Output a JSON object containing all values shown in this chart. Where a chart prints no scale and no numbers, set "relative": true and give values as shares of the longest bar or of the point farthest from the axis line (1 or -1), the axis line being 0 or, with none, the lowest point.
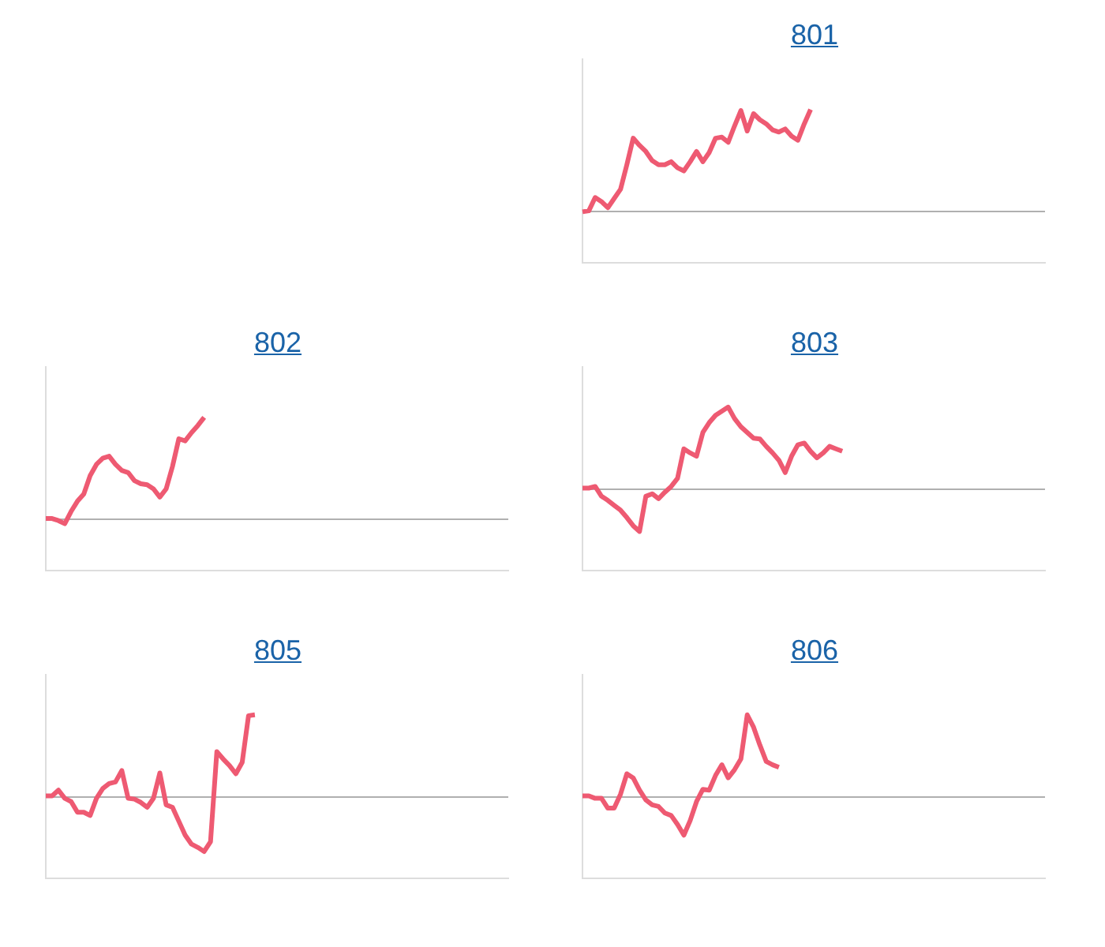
{
  "chart_data": [
    {
      "type": "line",
      "title": "801",
      "color": "#ee5a72",
      "relative": true,
      "categories": [
        null,
        null,
        null,
        null,
        null,
        null,
        null,
        null,
        null,
        null,
        null,
        null,
        null,
        null,
        null,
        null,
        null,
        null,
        null,
        null,
        null,
        null,
        null,
        null,
        null,
        null,
        null,
        null,
        null,
        null,
        null,
        null,
        null,
        null,
        null,
        null,
        null,
        null,
        null,
        null,
        null,
        null,
        null,
        null,
        null,
        null,
        null,
        null,
        null,
        null,
        null,
        null,
        null,
        null,
        null,
        null,
        null,
        null,
        null,
        null,
        null,
        null,
        null,
        null,
        null,
        null,
        null,
        null,
        null,
        null,
        null,
        null,
        null,
        null
      ],
      "values": [
        0,
        0.01,
        0.14,
        0.1,
        0.04,
        0.13,
        0.22,
        0.46,
        0.72,
        0.65,
        0.59,
        0.5,
        0.46,
        0.46,
        0.49,
        0.43,
        0.4,
        0.49,
        0.59,
        0.49,
        0.58,
        0.72,
        0.73,
        0.68,
        0.84,
        0.99,
        0.79,
        0.96,
        0.9,
        0.86,
        0.8,
        0.78,
        0.81,
        0.74,
        0.7,
        0.86,
        1,
        null,
        null,
        null,
        null,
        null,
        null,
        null,
        null,
        null,
        null,
        null,
        null,
        null,
        null,
        null,
        null,
        null,
        null,
        null,
        null,
        null,
        null,
        null,
        null,
        null,
        null,
        null,
        null,
        null,
        null,
        null,
        null,
        null,
        null,
        null,
        null,
        null
      ]
    },
    {
      "type": "line",
      "title": "802",
      "color": "#ee5a72",
      "relative": true,
      "categories": [
        null,
        null,
        null,
        null,
        null,
        null,
        null,
        null,
        null,
        null,
        null,
        null,
        null,
        null,
        null,
        null,
        null,
        null,
        null,
        null,
        null,
        null,
        null,
        null,
        null,
        null,
        null,
        null,
        null,
        null,
        null,
        null,
        null,
        null,
        null,
        null,
        null,
        null,
        null,
        null,
        null,
        null,
        null,
        null,
        null,
        null,
        null,
        null,
        null,
        null,
        null,
        null,
        null,
        null,
        null,
        null,
        null,
        null,
        null,
        null,
        null,
        null,
        null,
        null,
        null,
        null,
        null,
        null,
        null,
        null,
        null,
        null,
        null,
        null
      ],
      "values": [
        0.01,
        0.01,
        -0.01,
        -0.04,
        0.08,
        0.18,
        0.25,
        0.43,
        0.54,
        0.6,
        0.62,
        0.54,
        0.48,
        0.46,
        0.38,
        0.35,
        0.34,
        0.3,
        0.22,
        0.3,
        0.52,
        0.79,
        0.77,
        0.85,
        0.92,
        1,
        null,
        null,
        null,
        null,
        null,
        null,
        null,
        null,
        null,
        null,
        null,
        null,
        null,
        null,
        null,
        null,
        null,
        null,
        null,
        null,
        null,
        null,
        null,
        null,
        null,
        null,
        null,
        null,
        null,
        null,
        null,
        null,
        null,
        null,
        null,
        null,
        null,
        null,
        null,
        null,
        null,
        null,
        null,
        null,
        null,
        null,
        null,
        null
      ]
    },
    {
      "type": "line",
      "title": "803",
      "color": "#ee5a72",
      "relative": true,
      "categories": [
        null,
        null,
        null,
        null,
        null,
        null,
        null,
        null,
        null,
        null,
        null,
        null,
        null,
        null,
        null,
        null,
        null,
        null,
        null,
        null,
        null,
        null,
        null,
        null,
        null,
        null,
        null,
        null,
        null,
        null,
        null,
        null,
        null,
        null,
        null,
        null,
        null,
        null,
        null,
        null,
        null,
        null,
        null,
        null,
        null,
        null,
        null,
        null,
        null,
        null,
        null,
        null,
        null,
        null,
        null,
        null,
        null,
        null,
        null,
        null,
        null,
        null,
        null,
        null,
        null,
        null,
        null,
        null,
        null,
        null,
        null,
        null,
        null,
        null
      ],
      "values": [
        0.01,
        0.01,
        0.03,
        -0.09,
        -0.14,
        -0.2,
        -0.26,
        -0.35,
        -0.45,
        -0.52,
        -0.09,
        -0.06,
        -0.12,
        -0.04,
        0.03,
        0.13,
        0.49,
        0.44,
        0.4,
        0.69,
        0.81,
        0.9,
        0.95,
        1,
        0.86,
        0.76,
        0.69,
        0.62,
        0.61,
        0.52,
        0.44,
        0.35,
        0.2,
        0.4,
        0.54,
        0.56,
        0.46,
        0.38,
        0.44,
        0.52,
        0.49,
        0.46,
        null,
        null,
        null,
        null,
        null,
        null,
        null,
        null,
        null,
        null,
        null,
        null,
        null,
        null,
        null,
        null,
        null,
        null,
        null,
        null,
        null,
        null,
        null,
        null,
        null,
        null,
        null,
        null,
        null,
        null,
        null,
        null
      ]
    },
    {
      "type": "line",
      "title": "805",
      "color": "#ee5a72",
      "relative": true,
      "categories": [
        null,
        null,
        null,
        null,
        null,
        null,
        null,
        null,
        null,
        null,
        null,
        null,
        null,
        null,
        null,
        null,
        null,
        null,
        null,
        null,
        null,
        null,
        null,
        null,
        null,
        null,
        null,
        null,
        null,
        null,
        null,
        null,
        null,
        null,
        null,
        null,
        null,
        null,
        null,
        null,
        null,
        null,
        null,
        null,
        null,
        null,
        null,
        null,
        null,
        null,
        null,
        null,
        null,
        null,
        null,
        null,
        null,
        null,
        null,
        null,
        null,
        null,
        null,
        null,
        null,
        null,
        null,
        null,
        null,
        null,
        null,
        null,
        null,
        null
      ],
      "values": [
        0.01,
        0.01,
        0.08,
        -0.02,
        -0.06,
        -0.19,
        -0.19,
        -0.23,
        -0.02,
        0.1,
        0.16,
        0.18,
        0.32,
        -0.02,
        -0.03,
        -0.07,
        -0.13,
        -0.02,
        0.29,
        -0.1,
        -0.13,
        -0.3,
        -0.47,
        -0.58,
        -0.62,
        -0.67,
        -0.55,
        0.55,
        0.46,
        0.38,
        0.28,
        0.42,
        0.99,
        1,
        null,
        null,
        null,
        null,
        null,
        null,
        null,
        null,
        null,
        null,
        null,
        null,
        null,
        null,
        null,
        null,
        null,
        null,
        null,
        null,
        null,
        null,
        null,
        null,
        null,
        null,
        null,
        null,
        null,
        null,
        null,
        null,
        null,
        null,
        null,
        null,
        null,
        null,
        null,
        null
      ]
    },
    {
      "type": "line",
      "title": "806",
      "color": "#ee5a72",
      "relative": true,
      "categories": [
        null,
        null,
        null,
        null,
        null,
        null,
        null,
        null,
        null,
        null,
        null,
        null,
        null,
        null,
        null,
        null,
        null,
        null,
        null,
        null,
        null,
        null,
        null,
        null,
        null,
        null,
        null,
        null,
        null,
        null,
        null,
        null,
        null,
        null,
        null,
        null,
        null,
        null,
        null,
        null,
        null,
        null,
        null,
        null,
        null,
        null,
        null,
        null,
        null,
        null,
        null,
        null,
        null,
        null,
        null,
        null,
        null,
        null,
        null,
        null,
        null,
        null,
        null,
        null,
        null,
        null,
        null,
        null,
        null,
        null,
        null,
        null,
        null,
        null
      ],
      "values": [
        0.01,
        0.01,
        -0.02,
        -0.02,
        -0.14,
        -0.14,
        0.03,
        0.28,
        0.23,
        0.08,
        -0.04,
        -0.1,
        -0.12,
        -0.2,
        -0.23,
        -0.34,
        -0.47,
        -0.29,
        -0.06,
        0.09,
        0.08,
        0.26,
        0.39,
        0.23,
        0.33,
        0.46,
        1,
        0.85,
        0.63,
        0.43,
        0.39,
        0.36,
        null,
        null,
        null,
        null,
        null,
        null,
        null,
        null,
        null,
        null,
        null,
        null,
        null,
        null,
        null,
        null,
        null,
        null,
        null,
        null,
        null,
        null,
        null,
        null,
        null,
        null,
        null,
        null,
        null,
        null,
        null,
        null,
        null,
        null,
        null,
        null,
        null,
        null,
        null,
        null,
        null,
        null
      ]
    }
  ]
}
